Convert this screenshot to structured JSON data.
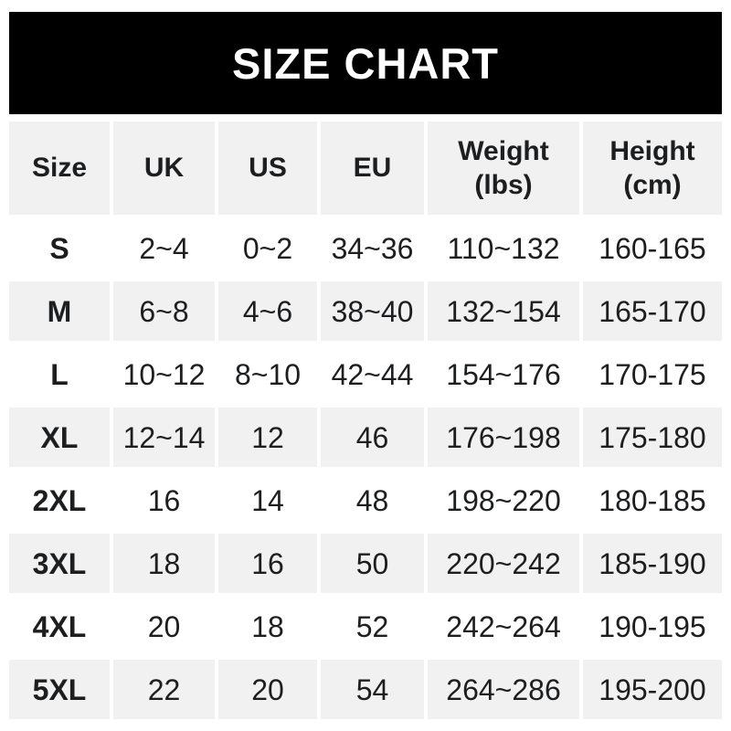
{
  "banner": {
    "title": "SIZE CHART"
  },
  "colors": {
    "banner_bg": "#000000",
    "banner_text": "#ffffff",
    "row_alt_bg": "#f1f1f1",
    "row_bg": "#ffffff",
    "text": "#1d1e20",
    "page_bg": "#ffffff"
  },
  "chart_data": {
    "type": "table",
    "title": "SIZE CHART",
    "columns": [
      "Size",
      "UK",
      "US",
      "EU",
      "Weight (lbs)",
      "Height (cm)"
    ],
    "rows": [
      [
        "S",
        "2~4",
        "0~2",
        "34~36",
        "110~132",
        "160-165"
      ],
      [
        "M",
        "6~8",
        "4~6",
        "38~40",
        "132~154",
        "165-170"
      ],
      [
        "L",
        "10~12",
        "8~10",
        "42~44",
        "154~176",
        "170-175"
      ],
      [
        "XL",
        "12~14",
        "12",
        "46",
        "176~198",
        "175-180"
      ],
      [
        "2XL",
        "16",
        "14",
        "48",
        "198~220",
        "180-185"
      ],
      [
        "3XL",
        "18",
        "16",
        "50",
        "220~242",
        "185-190"
      ],
      [
        "4XL",
        "20",
        "18",
        "52",
        "242~264",
        "190-195"
      ],
      [
        "5XL",
        "22",
        "20",
        "54",
        "264~286",
        "195-200"
      ]
    ],
    "layout": {
      "header_fill": "alternating rows shaded light gray starting with header",
      "separators": "white gutters between all cells",
      "weight_separator_char": "~",
      "height_separator_char": "-"
    }
  }
}
